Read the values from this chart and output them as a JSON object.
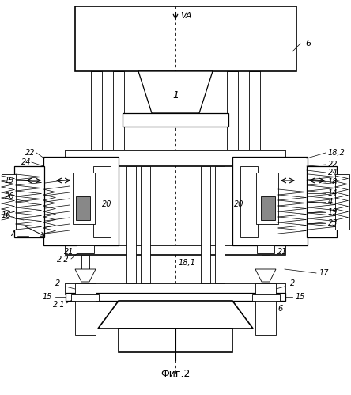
{
  "title": "Фиг.2",
  "background_color": "#ffffff",
  "line_color": "#000000",
  "label_fontsize": 7,
  "title_fontsize": 9,
  "figsize": [
    4.44,
    4.99
  ],
  "dpi": 100,
  "VA_label": "VA",
  "label_6_top": "6",
  "label_6_bot": "6",
  "label_1": "1",
  "label_22_L": "22",
  "label_24_L": "24",
  "label_19_L": "19",
  "label_26_L": "26",
  "label_16_L": "16",
  "label_7_L": "7",
  "label_22_R": "22",
  "label_24_R": "24",
  "label_18_2": "18,2",
  "label_18": "18",
  "label_14": "14",
  "label_4": "4",
  "label_19_R": "19",
  "label_23": "23",
  "label_20_L": "20",
  "label_20_R": "20",
  "label_21_L": "21",
  "label_21_R": "21",
  "label_2_L": "2",
  "label_2_R": "2",
  "label_22_bot": "2.2",
  "label_21_top": "2.1",
  "label_18_1": "18,1",
  "label_17": "17",
  "label_15_L": "15",
  "label_15_R": "15",
  "label_15_BL": "15"
}
